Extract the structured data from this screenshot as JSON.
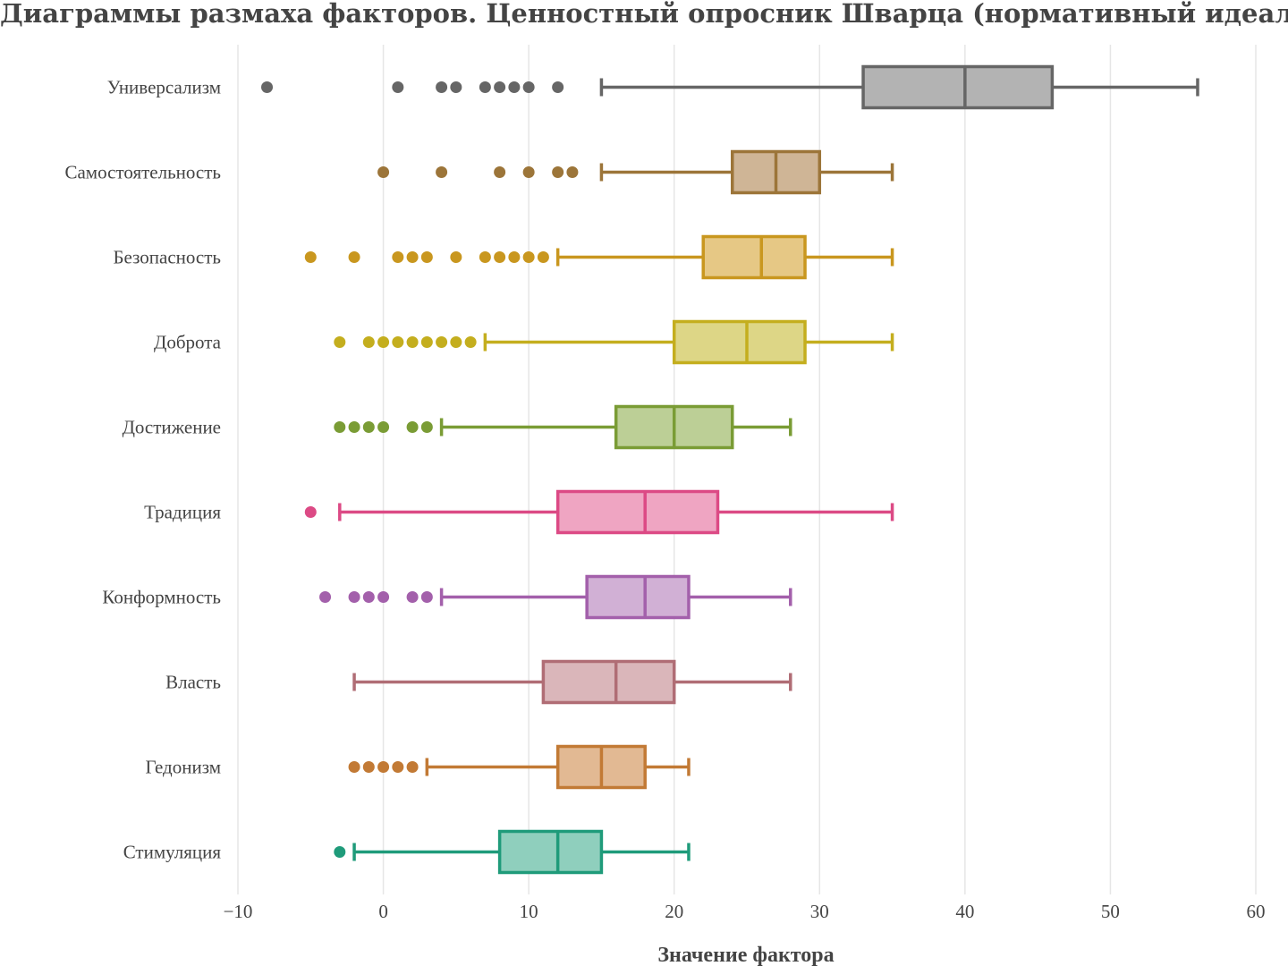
{
  "chart_data": {
    "type": "box",
    "orientation": "horizontal",
    "title": "Диаграммы размаха факторов. Ценностный опросник Шварца (нормативный идеал)",
    "xlabel": "Значение фактора",
    "ylabel": "",
    "xlim": [
      -10,
      60
    ],
    "xticks": [
      -10,
      0,
      10,
      20,
      30,
      40,
      50,
      60
    ],
    "xtick_labels": [
      "−10",
      "0",
      "10",
      "20",
      "30",
      "40",
      "50",
      "60"
    ],
    "grid": true,
    "legend": "none",
    "series": [
      {
        "category": "Универсализм",
        "color": "#666666",
        "fill": "#b3b3b3",
        "whisker_low": 15,
        "q1": 33,
        "median": 40,
        "q3": 46,
        "whisker_high": 56,
        "outliers": [
          -8,
          1,
          4,
          5,
          7,
          8,
          9,
          10,
          12
        ]
      },
      {
        "category": "Самостоятельность",
        "color": "#9c7539",
        "fill": "#cfb596",
        "whisker_low": 15,
        "q1": 24,
        "median": 27,
        "q3": 30,
        "whisker_high": 35,
        "outliers": [
          0,
          4,
          8,
          10,
          12,
          13
        ]
      },
      {
        "category": "Безопасность",
        "color": "#c9971f",
        "fill": "#e6c885",
        "whisker_low": 12,
        "q1": 22,
        "median": 26,
        "q3": 29,
        "whisker_high": 35,
        "outliers": [
          -5,
          -2,
          1,
          2,
          3,
          5,
          7,
          8,
          9,
          10,
          11
        ]
      },
      {
        "category": "Доброта",
        "color": "#c4ae1e",
        "fill": "#ddd686",
        "whisker_low": 7,
        "q1": 20,
        "median": 25,
        "q3": 29,
        "whisker_high": 35,
        "outliers": [
          -3,
          -1,
          0,
          1,
          2,
          3,
          4,
          5,
          6
        ]
      },
      {
        "category": "Достижение",
        "color": "#7a9c35",
        "fill": "#bccf96",
        "whisker_low": 4,
        "q1": 16,
        "median": 20,
        "q3": 24,
        "whisker_high": 28,
        "outliers": [
          -3,
          -2,
          -1,
          0,
          2,
          3
        ]
      },
      {
        "category": "Традиция",
        "color": "#dc4a85",
        "fill": "#efa5c2",
        "whisker_low": -3,
        "q1": 12,
        "median": 18,
        "q3": 23,
        "whisker_high": 35,
        "outliers": [
          -5
        ]
      },
      {
        "category": "Конформность",
        "color": "#a360ab",
        "fill": "#d1b0d5",
        "whisker_low": 4,
        "q1": 14,
        "median": 18,
        "q3": 21,
        "whisker_high": 28,
        "outliers": [
          -4,
          -2,
          -1,
          0,
          2,
          3
        ]
      },
      {
        "category": "Власть",
        "color": "#b06d75",
        "fill": "#dab6ba",
        "whisker_low": -2,
        "q1": 11,
        "median": 16,
        "q3": 20,
        "whisker_high": 28,
        "outliers": []
      },
      {
        "category": "Гедонизм",
        "color": "#c27a35",
        "fill": "#e2b993",
        "whisker_low": 3,
        "q1": 12,
        "median": 15,
        "q3": 18,
        "whisker_high": 21,
        "outliers": [
          -2,
          -1,
          0,
          1,
          2
        ]
      },
      {
        "category": "Стимуляция",
        "color": "#1f9b7a",
        "fill": "#8fcfbd",
        "whisker_low": -2,
        "q1": 8,
        "median": 12,
        "q3": 15,
        "whisker_high": 21,
        "outliers": [
          -3
        ]
      }
    ]
  }
}
